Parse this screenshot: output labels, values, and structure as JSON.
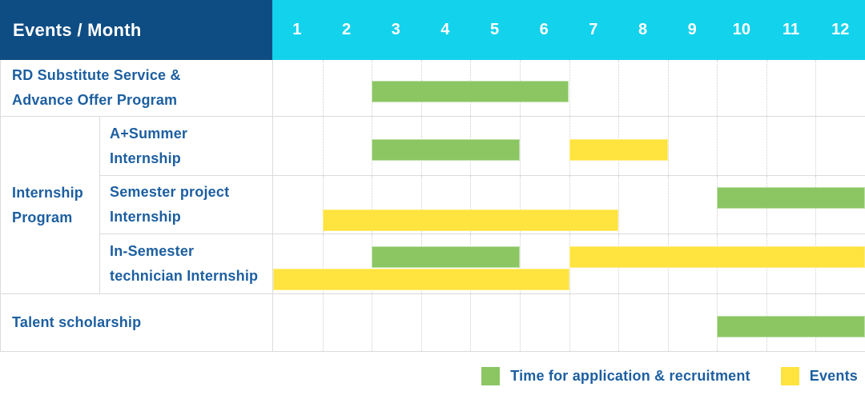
{
  "header": {
    "title": "Events / Month",
    "months": [
      "1",
      "2",
      "3",
      "4",
      "5",
      "6",
      "7",
      "8",
      "9",
      "10",
      "11",
      "12"
    ]
  },
  "colors": {
    "navy": "#0E4D84",
    "cyan": "#13D2EC",
    "green": "#8BC663",
    "yellow": "#FFE33E",
    "text_blue": "#1D5FA0",
    "grid": "#DBDBDB",
    "grid_dot": "#D0D0D0"
  },
  "legend": [
    {
      "color": "green",
      "label": "Time for application & recruitment"
    },
    {
      "color": "yellow",
      "label": "Events"
    }
  ],
  "chart_data": {
    "type": "gantt",
    "title": "Events / Month",
    "x_axis": {
      "label": "Month",
      "ticks": [
        1,
        2,
        3,
        4,
        5,
        6,
        7,
        8,
        9,
        10,
        11,
        12
      ]
    },
    "series_legend": {
      "green": "Time for application & recruitment",
      "yellow": "Events"
    },
    "group_label": "Internship Program",
    "rows": [
      {
        "key": "rd",
        "group": null,
        "label": "RD Substitute Service & Advance Offer Program",
        "label_lines": [
          "RD Substitute Service &",
          "Advance Offer Program"
        ],
        "bars": [
          {
            "color": "green",
            "series": "Time for application & recruitment",
            "start_month": 3,
            "end_month": 6,
            "line": "single"
          }
        ]
      },
      {
        "key": "a_summer",
        "group": "Internship Program",
        "label": "A+Summer Internship",
        "label_lines": [
          "A+Summer",
          "Internship"
        ],
        "bars": [
          {
            "color": "green",
            "series": "Time for application & recruitment",
            "start_month": 3,
            "end_month": 5,
            "line": "single"
          },
          {
            "color": "yellow",
            "series": "Events",
            "start_month": 7,
            "end_month": 8,
            "line": "single"
          }
        ]
      },
      {
        "key": "semester_project",
        "group": "Internship Program",
        "label": "Semester project Internship",
        "label_lines": [
          "Semester project",
          "Internship"
        ],
        "bars": [
          {
            "color": "green",
            "series": "Time for application & recruitment",
            "start_month": 10,
            "end_month": 12,
            "line": "upper"
          },
          {
            "color": "yellow",
            "series": "Events",
            "start_month": 2,
            "end_month": 7,
            "line": "lower"
          }
        ]
      },
      {
        "key": "in_semester",
        "group": "Internship Program",
        "label": "In-Semester technician Internship",
        "label_lines": [
          "In-Semester",
          "technician Internship"
        ],
        "bars": [
          {
            "color": "green",
            "series": "Time for application & recruitment",
            "start_month": 3,
            "end_month": 5,
            "line": "upper"
          },
          {
            "color": "yellow",
            "series": "Events",
            "start_month": 7,
            "end_month": 12,
            "line": "upper"
          },
          {
            "color": "yellow",
            "series": "Events",
            "start_month": 1,
            "end_month": 6,
            "line": "lower"
          }
        ]
      },
      {
        "key": "talent",
        "group": null,
        "label": "Talent scholarship",
        "label_lines": [
          "Talent scholarship"
        ],
        "bars": [
          {
            "color": "green",
            "series": "Time for application & recruitment",
            "start_month": 10,
            "end_month": 12,
            "line": "single"
          }
        ]
      }
    ]
  }
}
